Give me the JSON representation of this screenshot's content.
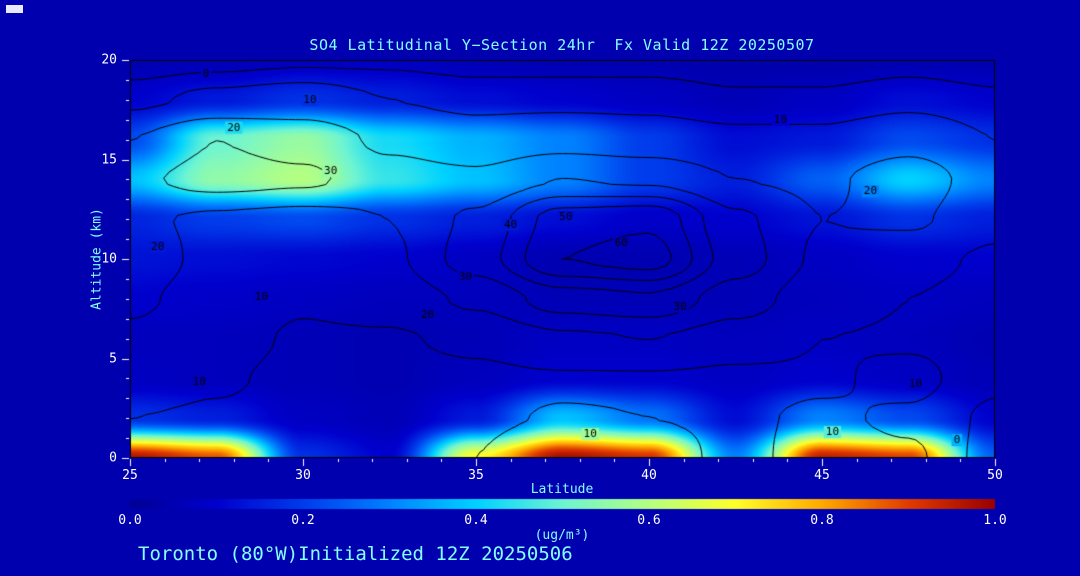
{
  "theme": {
    "background": "#0000AF",
    "text_cyan": "#84FFFF",
    "tick_text": "#FFFFFF",
    "contour_color": "#000000",
    "frame_color": "#000000",
    "tick_color": "#FFFFFF"
  },
  "corner_mark": {
    "color": "#E8E8FF"
  },
  "footer": {
    "annotation": "Toronto (80°W)Initialized 12Z 20250506"
  },
  "chart_data": {
    "type": "heatmap",
    "title": "SO4 Latitudinal Y−Section 24hr  Fx Valid 12Z 20250507",
    "xlabel": "Latitude",
    "ylabel": "Altitude (km)",
    "xlim": [
      25,
      50
    ],
    "ylim": [
      0,
      20
    ],
    "x_minor_step": 1,
    "y_minor_step": 1,
    "x_ticks": [
      {
        "value": 25,
        "label": "25"
      },
      {
        "value": 30,
        "label": "30"
      },
      {
        "value": 35,
        "label": "35"
      },
      {
        "value": 40,
        "label": "40"
      },
      {
        "value": 45,
        "label": "45"
      },
      {
        "value": 50,
        "label": "50"
      }
    ],
    "y_ticks": [
      {
        "value": 0,
        "label": "0"
      },
      {
        "value": 5,
        "label": "5"
      },
      {
        "value": 10,
        "label": "10"
      },
      {
        "value": 15,
        "label": "15"
      },
      {
        "value": 20,
        "label": "20"
      }
    ],
    "lats": [
      25,
      27.5,
      30,
      32.5,
      35,
      37.5,
      40,
      42.5,
      45,
      47.5,
      50
    ],
    "alts": [
      0,
      2,
      4,
      6,
      8,
      10,
      12,
      14,
      16,
      18,
      20
    ],
    "fill_field": {
      "name": "SO4 concentration",
      "units": "ug/m³",
      "values": [
        [
          0.97,
          0.88,
          0.18,
          0.1,
          0.7,
          0.98,
          0.92,
          0.3,
          0.95,
          0.9,
          0.25
        ],
        [
          0.18,
          0.15,
          0.08,
          0.06,
          0.14,
          0.38,
          0.28,
          0.12,
          0.3,
          0.22,
          0.1
        ],
        [
          0.08,
          0.07,
          0.06,
          0.05,
          0.07,
          0.1,
          0.1,
          0.08,
          0.1,
          0.08,
          0.06
        ],
        [
          0.07,
          0.07,
          0.06,
          0.05,
          0.06,
          0.08,
          0.08,
          0.07,
          0.08,
          0.07,
          0.05
        ],
        [
          0.1,
          0.09,
          0.08,
          0.07,
          0.07,
          0.06,
          0.06,
          0.06,
          0.07,
          0.08,
          0.07
        ],
        [
          0.13,
          0.12,
          0.11,
          0.1,
          0.08,
          0.05,
          0.05,
          0.06,
          0.08,
          0.1,
          0.1
        ],
        [
          0.16,
          0.2,
          0.22,
          0.18,
          0.15,
          0.12,
          0.09,
          0.1,
          0.13,
          0.18,
          0.15
        ],
        [
          0.38,
          0.55,
          0.6,
          0.45,
          0.38,
          0.3,
          0.2,
          0.15,
          0.25,
          0.4,
          0.3
        ],
        [
          0.22,
          0.5,
          0.56,
          0.42,
          0.36,
          0.3,
          0.2,
          0.12,
          0.14,
          0.22,
          0.18
        ],
        [
          0.1,
          0.14,
          0.18,
          0.15,
          0.12,
          0.1,
          0.08,
          0.06,
          0.08,
          0.12,
          0.1
        ],
        [
          0.05,
          0.06,
          0.08,
          0.08,
          0.06,
          0.05,
          0.05,
          0.04,
          0.04,
          0.05,
          0.05
        ]
      ]
    },
    "colormap": [
      [
        0.0,
        0,
        0,
        150
      ],
      [
        0.1,
        0,
        0,
        205
      ],
      [
        0.2,
        0,
        60,
        235
      ],
      [
        0.3,
        0,
        130,
        255
      ],
      [
        0.4,
        0,
        210,
        255
      ],
      [
        0.5,
        110,
        245,
        210
      ],
      [
        0.6,
        180,
        255,
        130
      ],
      [
        0.7,
        255,
        255,
        40
      ],
      [
        0.8,
        255,
        170,
        0
      ],
      [
        0.9,
        225,
        60,
        0
      ],
      [
        1.0,
        155,
        0,
        0
      ]
    ],
    "colorbar": {
      "min": 0.0,
      "max": 1.0,
      "label": "(ug/m³)",
      "ticks": [
        {
          "value": 0.0,
          "label": "0.0"
        },
        {
          "value": 0.2,
          "label": "0.2"
        },
        {
          "value": 0.4,
          "label": "0.4"
        },
        {
          "value": 0.6,
          "label": "0.6"
        },
        {
          "value": 0.8,
          "label": "0.8"
        },
        {
          "value": 1.0,
          "label": "1.0"
        }
      ]
    },
    "contour": {
      "levels": [
        5,
        10,
        20,
        30,
        40,
        50,
        60
      ],
      "values": [
        [
          6,
          8,
          6,
          5,
          10,
          16,
          14,
          8,
          13,
          11,
          3
        ],
        [
          10,
          9,
          7,
          6,
          9,
          10.5,
          10,
          9,
          11,
          9,
          4
        ],
        [
          14,
          11,
          8,
          7,
          8,
          9,
          9,
          8,
          9,
          12,
          6
        ],
        [
          18,
          13,
          9,
          9,
          12,
          18,
          20,
          15,
          10,
          9,
          7
        ],
        [
          22,
          15,
          11,
          14,
          22,
          35,
          38,
          25,
          14,
          10,
          8
        ],
        [
          26,
          17,
          13,
          18,
          35,
          60,
          65,
          35,
          18,
          12,
          9
        ],
        [
          22,
          18,
          16,
          20,
          32,
          55,
          58,
          32,
          20,
          22,
          12
        ],
        [
          28,
          34,
          32,
          24,
          22,
          30,
          28,
          20,
          18,
          26,
          14
        ],
        [
          20,
          30,
          26,
          18,
          14,
          16,
          14,
          12,
          12,
          16,
          10
        ],
        [
          8,
          12,
          14,
          10,
          8,
          8,
          8,
          6,
          6,
          8,
          6
        ],
        [
          2,
          3,
          4,
          4,
          3,
          3,
          3,
          2,
          2,
          3,
          2
        ]
      ],
      "labels": [
        {
          "text": "0",
          "lat": 27.2,
          "alt": 19.3
        },
        {
          "text": "10",
          "lat": 30.2,
          "alt": 18.0
        },
        {
          "text": "20",
          "lat": 28.0,
          "alt": 16.6
        },
        {
          "text": "30",
          "lat": 30.8,
          "alt": 14.4
        },
        {
          "text": "20",
          "lat": 25.8,
          "alt": 10.6
        },
        {
          "text": "10",
          "lat": 28.8,
          "alt": 8.1
        },
        {
          "text": "10",
          "lat": 27.0,
          "alt": 3.8
        },
        {
          "text": "10",
          "lat": 43.8,
          "alt": 17.0
        },
        {
          "text": "20",
          "lat": 46.4,
          "alt": 13.4
        },
        {
          "text": "40",
          "lat": 36.0,
          "alt": 11.7
        },
        {
          "text": "50",
          "lat": 37.6,
          "alt": 12.1
        },
        {
          "text": "60",
          "lat": 39.2,
          "alt": 10.8
        },
        {
          "text": "30",
          "lat": 34.7,
          "alt": 9.1
        },
        {
          "text": "20",
          "lat": 33.6,
          "alt": 7.2
        },
        {
          "text": "30",
          "lat": 40.9,
          "alt": 7.6
        },
        {
          "text": "10",
          "lat": 38.3,
          "alt": 1.2
        },
        {
          "text": "10",
          "lat": 45.3,
          "alt": 1.3
        },
        {
          "text": "10",
          "lat": 47.7,
          "alt": 3.7
        },
        {
          "text": "0",
          "lat": 48.9,
          "alt": 0.9
        }
      ]
    }
  }
}
